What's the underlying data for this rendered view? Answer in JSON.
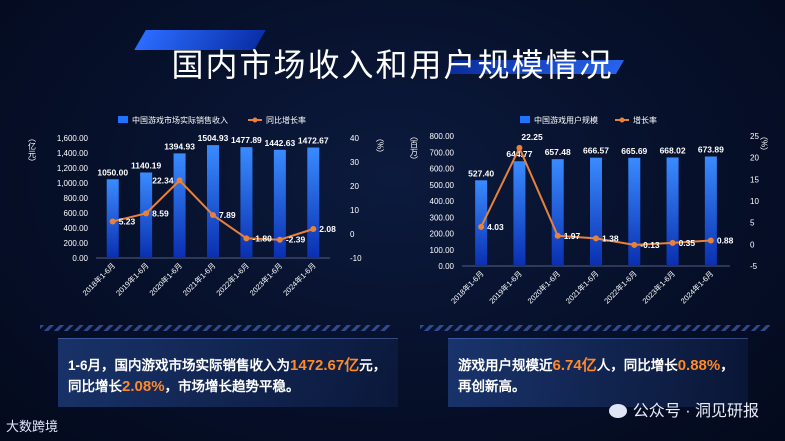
{
  "page": {
    "title": "国内市场收入和用户规模情况"
  },
  "left": {
    "legend_bar": "中国游戏市场实际销售收入",
    "legend_line": "同比增长率",
    "y_left_unit": "（亿元）",
    "y_right_unit": "（%）",
    "summary": {
      "p1": "1-6月，国内游戏市场实际销售收入为",
      "v1": "1472.67亿",
      "p2": "元，",
      "p3": "同比增长",
      "v2": "2.08%",
      "p4": "，市场增长趋势平稳。"
    }
  },
  "right": {
    "legend_bar": "中国游戏用户规模",
    "legend_line": "增长率",
    "y_left_unit": "（百万）",
    "y_right_unit": "（%）",
    "summary": {
      "p1": "游戏用户规模近",
      "v1": "6.74亿",
      "p2": "人，同比增长",
      "v2": "0.88%",
      "p3": "，",
      "p4": "再创新高。"
    }
  },
  "footer": {
    "logo": "大数跨境",
    "watermark": "公众号 · 洞见研报"
  },
  "colors": {
    "bar": "#1f74ff",
    "line": "#e8823a"
  },
  "chart_data": [
    {
      "type": "bar",
      "title": "中国游戏市场实际销售收入",
      "categories": [
        "2018年1-6月",
        "2019年1-6月",
        "2020年1-6月",
        "2021年1-6月",
        "2022年1-6月",
        "2023年1-6月",
        "2024年1-6月"
      ],
      "series": [
        {
          "name": "中国游戏市场实际销售收入",
          "axis": "left",
          "kind": "bar",
          "values": [
            1050.0,
            1140.19,
            1394.93,
            1504.93,
            1477.89,
            1442.63,
            1472.67
          ],
          "labels": [
            "1050.00",
            "1140.19",
            "1394.93",
            "1504.93",
            "1477.89",
            "1442.63",
            "1472.67"
          ]
        },
        {
          "name": "同比增长率",
          "axis": "right",
          "kind": "line",
          "values": [
            5.23,
            8.59,
            22.34,
            7.89,
            -1.8,
            -2.39,
            2.08
          ],
          "labels": [
            "5.23",
            "8.59",
            "22.34",
            "7.89",
            "-1.80",
            "-2.39",
            "2.08"
          ]
        }
      ],
      "y_left": {
        "min": 0,
        "max": 1600,
        "step": 200,
        "ticks": [
          "0.00",
          "200.00",
          "400.00",
          "600.00",
          "800.00",
          "1,000.00",
          "1,200.00",
          "1,400.00",
          "1,600.00"
        ]
      },
      "y_right": {
        "min": -10,
        "max": 40,
        "step": 10,
        "ticks": [
          "-10",
          "0",
          "10",
          "20",
          "30",
          "40"
        ]
      }
    },
    {
      "type": "bar",
      "title": "中国游戏用户规模",
      "categories": [
        "2018年1-6月",
        "2019年1-6月",
        "2020年1-6月",
        "2021年1-6月",
        "2022年1-6月",
        "2023年1-6月",
        "2024年1-6月"
      ],
      "series": [
        {
          "name": "中国游戏用户规模",
          "axis": "left",
          "kind": "bar",
          "values": [
            527.4,
            644.77,
            657.48,
            666.57,
            665.69,
            668.02,
            673.89
          ],
          "labels": [
            "527.40",
            "644.77",
            "657.48",
            "666.57",
            "665.69",
            "668.02",
            "673.89"
          ]
        },
        {
          "name": "增长率",
          "axis": "right",
          "kind": "line",
          "values": [
            4.03,
            22.25,
            1.97,
            1.38,
            -0.13,
            0.35,
            0.88
          ],
          "labels": [
            "4.03",
            "22.25",
            "1.97",
            "1.38",
            "-0.13",
            "0.35",
            "0.88"
          ]
        }
      ],
      "y_left": {
        "min": 0,
        "max": 800,
        "step": 100,
        "ticks": [
          "0.00",
          "100.00",
          "200.00",
          "300.00",
          "400.00",
          "500.00",
          "600.00",
          "700.00",
          "800.00"
        ]
      },
      "y_right": {
        "min": -5,
        "max": 25,
        "step": 5,
        "ticks": [
          "-5",
          "0",
          "5",
          "10",
          "15",
          "20",
          "25"
        ]
      }
    }
  ]
}
